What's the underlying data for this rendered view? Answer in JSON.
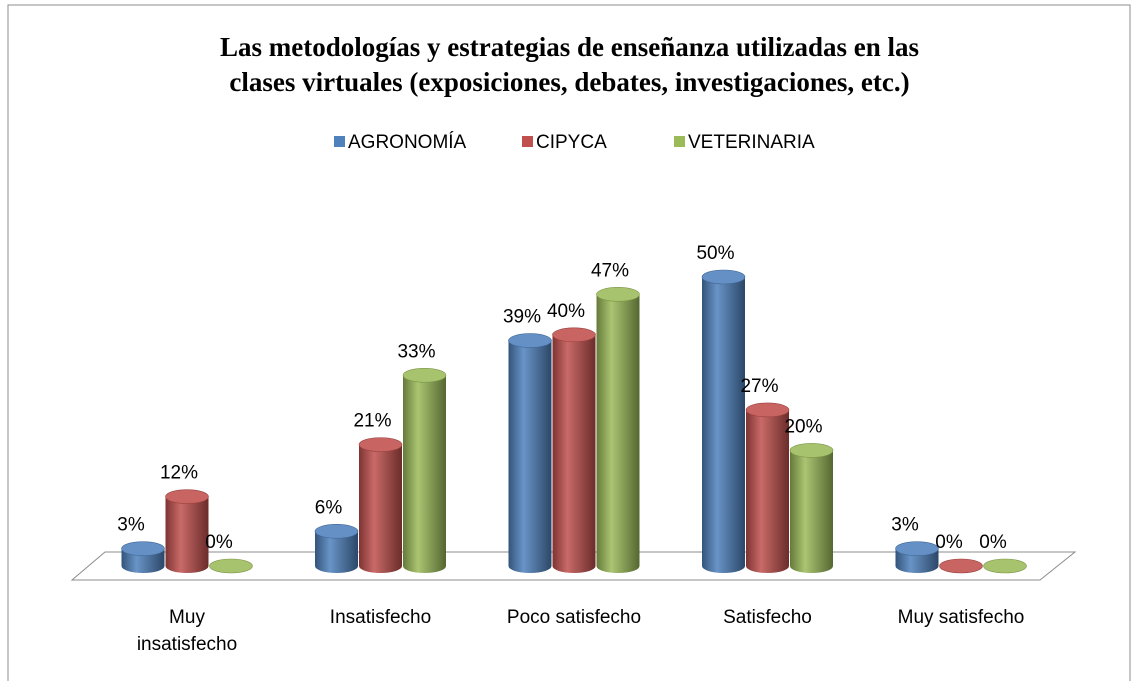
{
  "chart_data": {
    "type": "bar3d",
    "title": "Las metodologías y estrategias de enseñanza utilizadas en las\nclases virtuales (exposiciones, debates, investigaciones, etc.)",
    "categories": [
      "Muy\ninsatisfecho",
      "Insatisfecho",
      "Poco satisfecho",
      "Satisfecho",
      "Muy satisfecho"
    ],
    "series": [
      {
        "name": "AGRONOMÍA",
        "color": "#4f81bd",
        "values": [
          3,
          6,
          39,
          50,
          3
        ],
        "value_labels": [
          "3%",
          "6%",
          "39%",
          "50%",
          "3%"
        ]
      },
      {
        "name": "CIPYCA",
        "color": "#c0504d",
        "values": [
          12,
          21,
          40,
          27,
          0
        ],
        "value_labels": [
          "12%",
          "21%",
          "40%",
          "27%",
          "0%"
        ]
      },
      {
        "name": "VETERINARIA",
        "color": "#9bbb59",
        "values": [
          0,
          33,
          47,
          20,
          0
        ],
        "value_labels": [
          "0%",
          "33%",
          "47%",
          "20%",
          "0%"
        ]
      }
    ],
    "legend": "top"
  }
}
